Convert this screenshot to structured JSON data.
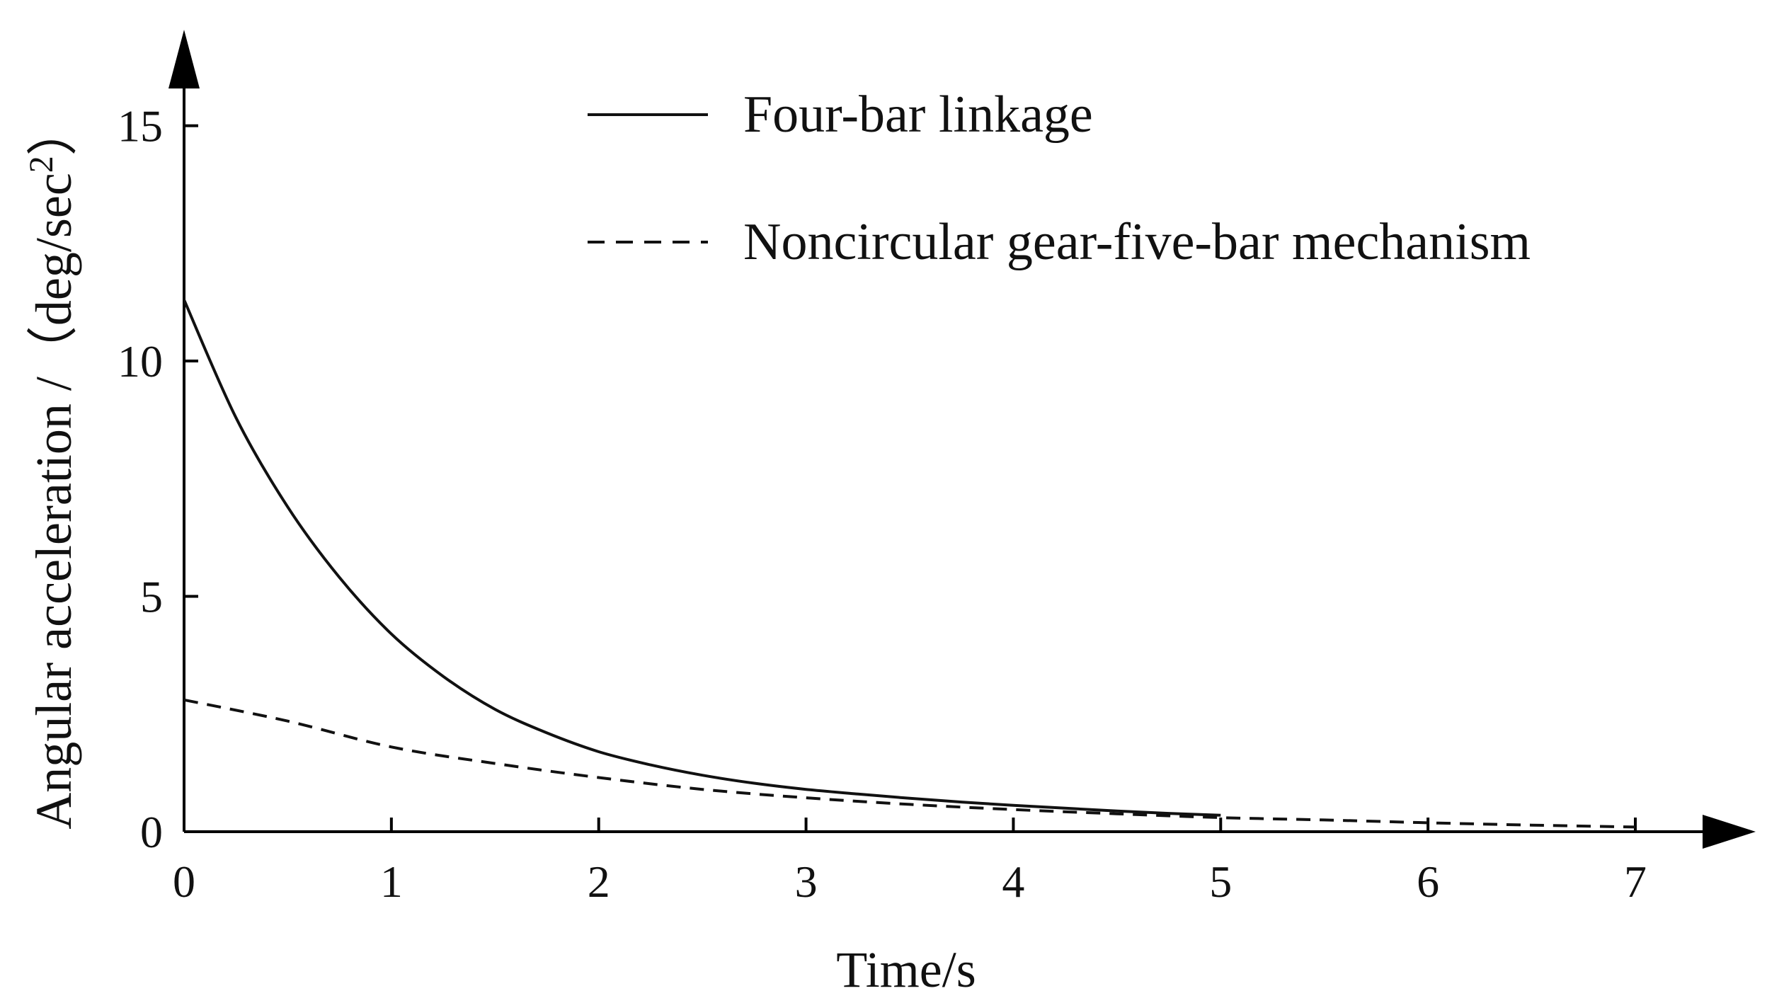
{
  "chart_data": {
    "type": "line",
    "title": "",
    "xlabel": "Time/s",
    "ylabel": "Angular acceleration /（deg/sec",
    "ylabel_superscript": "2",
    "ylabel_close": "）",
    "xlim": [
      0,
      7
    ],
    "ylim": [
      0,
      16
    ],
    "x_ticks": [
      0,
      1,
      2,
      3,
      4,
      5,
      6,
      7
    ],
    "x_tick_labels": [
      "0",
      "1",
      "2",
      "3",
      "4",
      "5",
      "6",
      "7"
    ],
    "y_ticks": [
      0,
      5,
      10,
      15
    ],
    "y_tick_labels": [
      "0",
      "5",
      "10",
      "15"
    ],
    "grid": false,
    "legend_position": "top-center",
    "colors": {
      "axis": "#000000",
      "series": "#111111"
    },
    "series": [
      {
        "name": "Four-bar linkage",
        "style": "solid",
        "x": [
          0,
          0.25,
          0.5,
          0.75,
          1,
          1.25,
          1.5,
          1.75,
          2,
          2.25,
          2.5,
          2.75,
          3,
          3.25,
          3.5,
          3.75,
          4,
          4.25,
          4.5,
          4.75,
          5
        ],
        "y": [
          11.3,
          8.8,
          6.9,
          5.4,
          4.2,
          3.3,
          2.6,
          2.1,
          1.7,
          1.42,
          1.2,
          1.03,
          0.9,
          0.8,
          0.71,
          0.63,
          0.56,
          0.5,
          0.44,
          0.39,
          0.35
        ]
      },
      {
        "name": "Noncircular gear-five-bar mechanism",
        "style": "dashed",
        "x": [
          0,
          0.5,
          1,
          1.5,
          2,
          2.5,
          3,
          3.5,
          4,
          4.5,
          5,
          5.5,
          6,
          6.5,
          7
        ],
        "y": [
          2.8,
          2.35,
          1.8,
          1.45,
          1.15,
          0.9,
          0.72,
          0.58,
          0.47,
          0.38,
          0.3,
          0.25,
          0.19,
          0.14,
          0.1
        ]
      }
    ]
  }
}
